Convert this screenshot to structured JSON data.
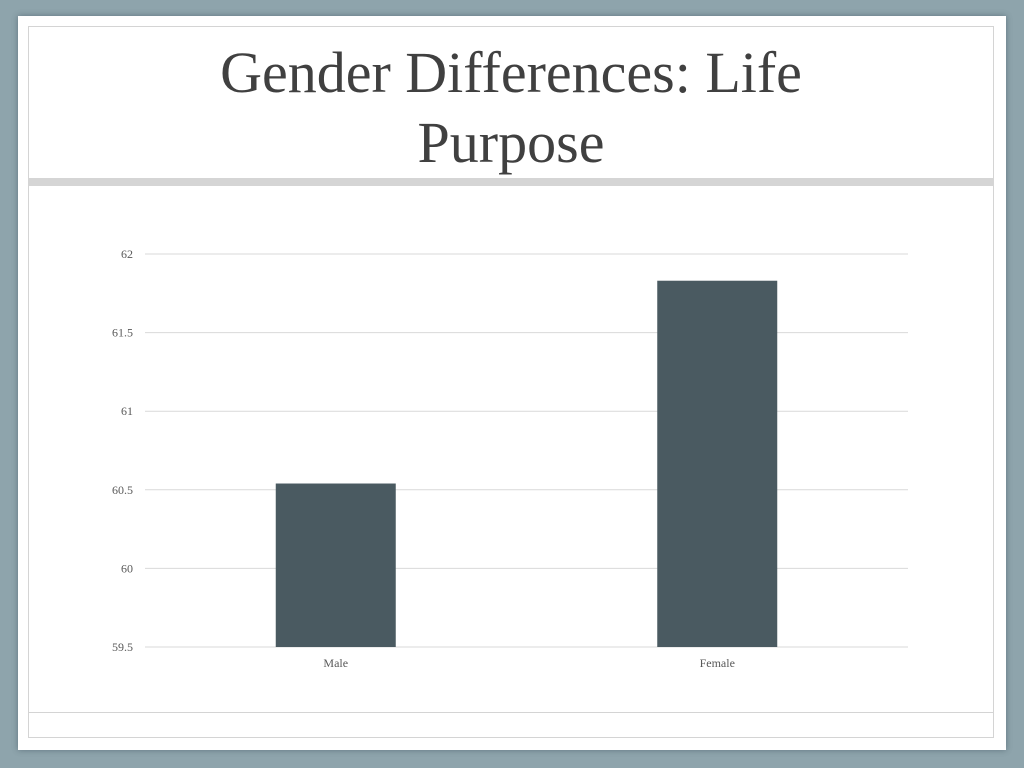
{
  "slide": {
    "title": "Gender Differences: Life Purpose"
  },
  "colors": {
    "background": "#8ea4ac",
    "bar": "#4a5a61",
    "gridline": "#d9d9d9",
    "title_text": "#404040"
  },
  "chart_data": {
    "type": "bar",
    "categories": [
      "Male",
      "Female"
    ],
    "values": [
      60.54,
      61.83
    ],
    "title": "",
    "xlabel": "",
    "ylabel": "",
    "ylim": [
      59.5,
      62
    ],
    "yticks": [
      59.5,
      60,
      60.5,
      61,
      61.5,
      62
    ],
    "ytick_labels": [
      "59.5",
      "60",
      "60.5",
      "61",
      "61.5",
      "62"
    ],
    "grid": true,
    "legend": "none"
  }
}
